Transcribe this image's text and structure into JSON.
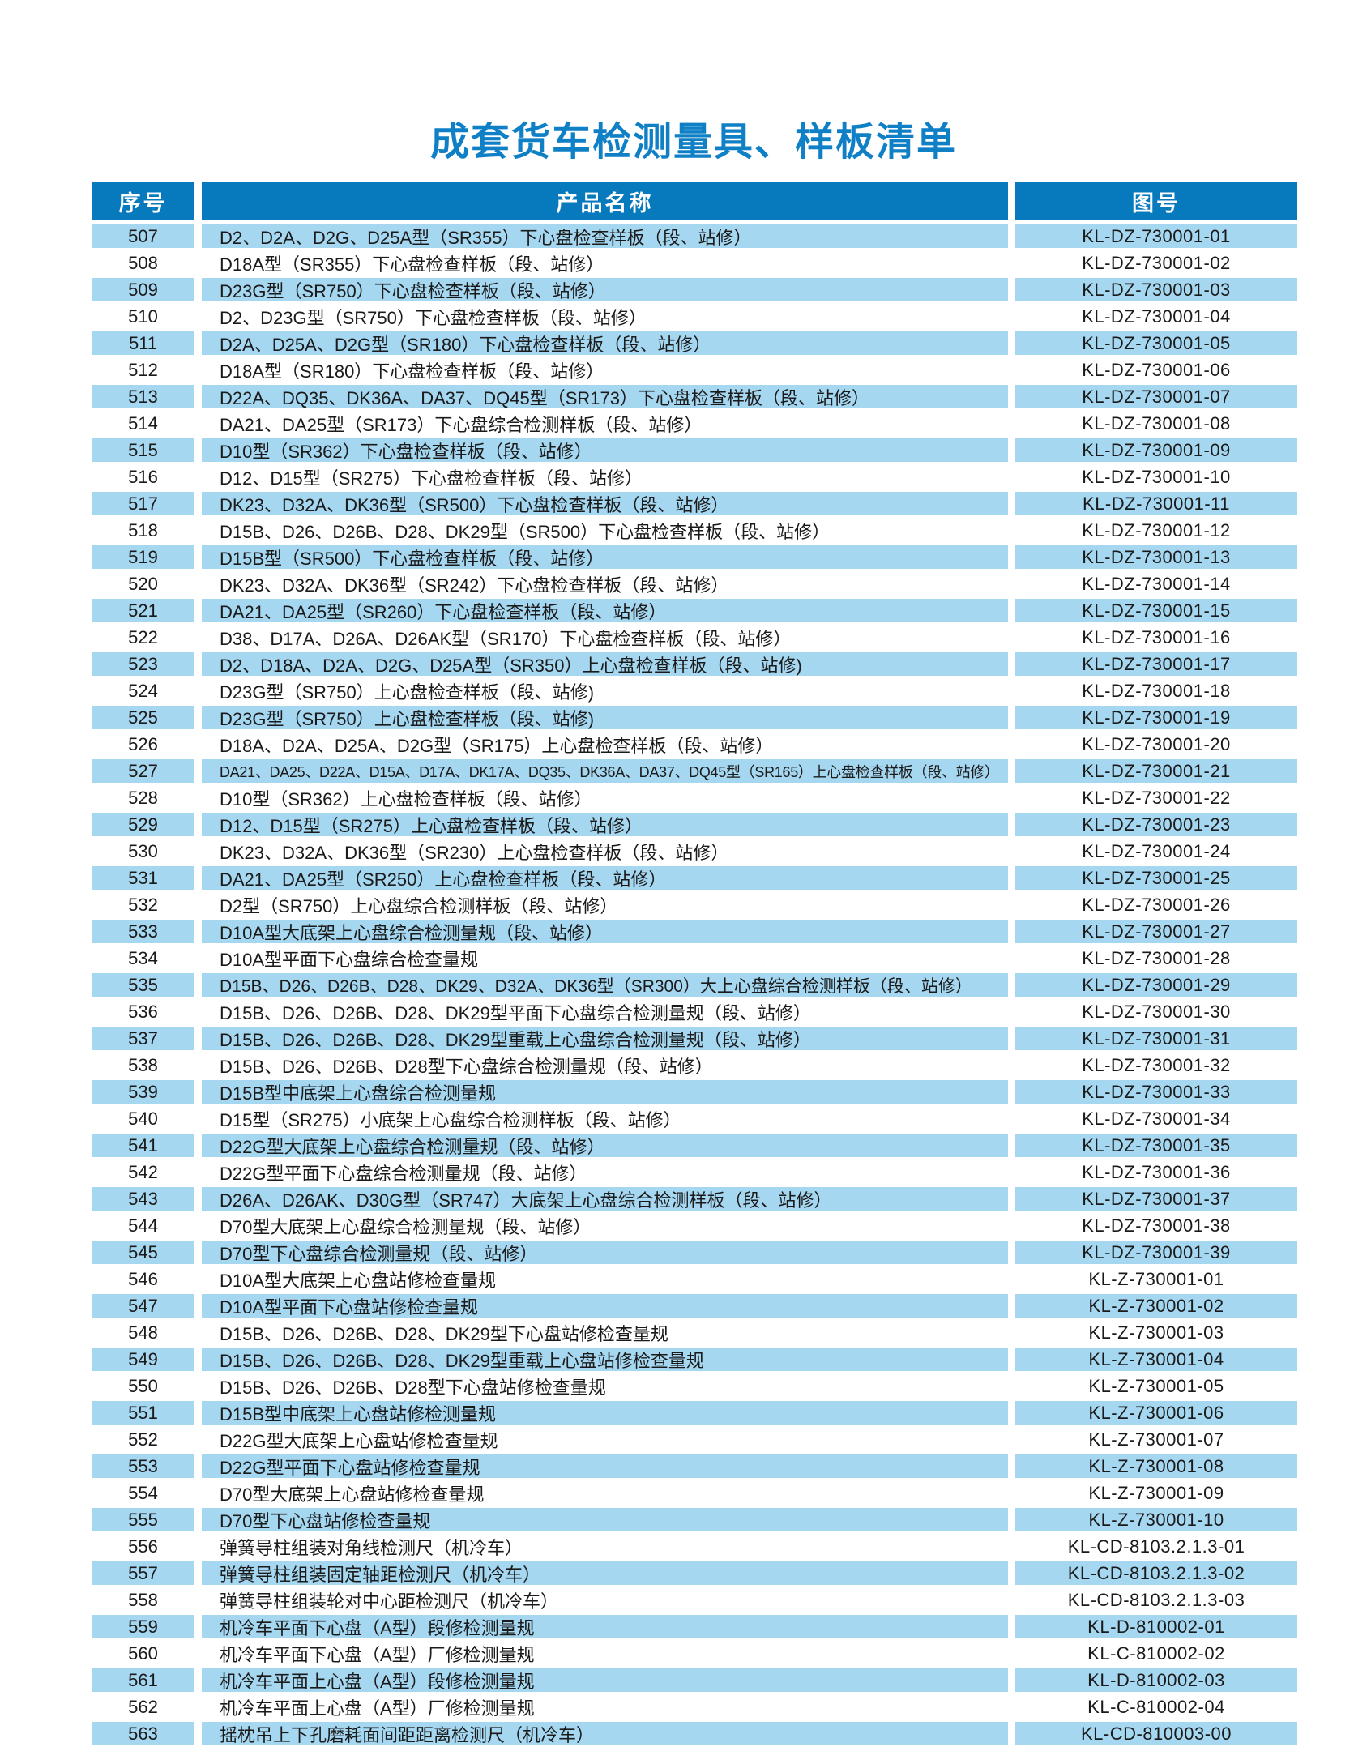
{
  "page": {
    "title": "成套货车检测量具、样板清单"
  },
  "colors": {
    "title": "#1080c6",
    "header_bg": "#0779bd",
    "alt_row_bg": "#a6d7f1",
    "text": "#1a1a1a"
  },
  "table": {
    "columns": [
      "序号",
      "产品名称",
      "图号"
    ],
    "rows": [
      {
        "no": "507",
        "name": "D2、D2A、D2G、D25A型（SR355）下心盘检查样板（段、站修）",
        "code": "KL-DZ-730001-01"
      },
      {
        "no": "508",
        "name": "D18A型（SR355）下心盘检查样板（段、站修）",
        "code": "KL-DZ-730001-02"
      },
      {
        "no": "509",
        "name": "D23G型（SR750）下心盘检查样板（段、站修）",
        "code": "KL-DZ-730001-03"
      },
      {
        "no": "510",
        "name": "D2、D23G型（SR750）下心盘检查样板（段、站修）",
        "code": "KL-DZ-730001-04"
      },
      {
        "no": "511",
        "name": "D2A、D25A、D2G型（SR180）下心盘检查样板（段、站修）",
        "code": "KL-DZ-730001-05"
      },
      {
        "no": "512",
        "name": "D18A型（SR180）下心盘检查样板（段、站修）",
        "code": "KL-DZ-730001-06"
      },
      {
        "no": "513",
        "name": "D22A、DQ35、DK36A、DA37、DQ45型（SR173）下心盘检查样板（段、站修）",
        "code": "KL-DZ-730001-07"
      },
      {
        "no": "514",
        "name": "DA21、DA25型（SR173）下心盘综合检测样板（段、站修）",
        "code": "KL-DZ-730001-08"
      },
      {
        "no": "515",
        "name": "D10型（SR362）下心盘检查样板（段、站修）",
        "code": "KL-DZ-730001-09"
      },
      {
        "no": "516",
        "name": "D12、D15型（SR275）下心盘检查样板（段、站修）",
        "code": "KL-DZ-730001-10"
      },
      {
        "no": "517",
        "name": "DK23、D32A、DK36型（SR500）下心盘检查样板（段、站修）",
        "code": "KL-DZ-730001-11"
      },
      {
        "no": "518",
        "name": "D15B、D26、D26B、D28、DK29型（SR500）下心盘检查样板（段、站修）",
        "code": "KL-DZ-730001-12"
      },
      {
        "no": "519",
        "name": "D15B型（SR500）下心盘检查样板（段、站修）",
        "code": "KL-DZ-730001-13"
      },
      {
        "no": "520",
        "name": "DK23、D32A、DK36型（SR242）下心盘检查样板（段、站修）",
        "code": "KL-DZ-730001-14"
      },
      {
        "no": "521",
        "name": "DA21、DA25型（SR260）下心盘检查样板（段、站修）",
        "code": "KL-DZ-730001-15"
      },
      {
        "no": "522",
        "name": "D38、D17A、D26A、D26AK型（SR170）下心盘检查样板（段、站修）",
        "code": "KL-DZ-730001-16"
      },
      {
        "no": "523",
        "name": "D2、D18A、D2A、D2G、D25A型（SR350）上心盘检查样板（段、站修)",
        "code": "KL-DZ-730001-17"
      },
      {
        "no": "524",
        "name": "D23G型（SR750）上心盘检查样板（段、站修)",
        "code": "KL-DZ-730001-18"
      },
      {
        "no": "525",
        "name": "D23G型（SR750）上心盘检查样板（段、站修)",
        "code": "KL-DZ-730001-19"
      },
      {
        "no": "526",
        "name": "D18A、D2A、D25A、D2G型（SR175）上心盘检查样板（段、站修）",
        "code": "KL-DZ-730001-20"
      },
      {
        "no": "527",
        "name": "DA21、DA25、D22A、D15A、D17A、DK17A、DQ35、DK36A、DA37、DQ45型（SR165）上心盘检查样板（段、站修）",
        "code": "KL-DZ-730001-21",
        "condensed": true
      },
      {
        "no": "528",
        "name": "D10型（SR362）上心盘检查样板（段、站修）",
        "code": "KL-DZ-730001-22"
      },
      {
        "no": "529",
        "name": "D12、D15型（SR275）上心盘检查样板（段、站修）",
        "code": "KL-DZ-730001-23"
      },
      {
        "no": "530",
        "name": "DK23、D32A、DK36型（SR230）上心盘检查样板（段、站修）",
        "code": "KL-DZ-730001-24"
      },
      {
        "no": "531",
        "name": "DA21、DA25型（SR250）上心盘检查样板（段、站修）",
        "code": "KL-DZ-730001-25"
      },
      {
        "no": "532",
        "name": "D2型（SR750）上心盘综合检测样板（段、站修）",
        "code": "KL-DZ-730001-26"
      },
      {
        "no": "533",
        "name": "D10A型大底架上心盘综合检测量规（段、站修）",
        "code": "KL-DZ-730001-27"
      },
      {
        "no": "534",
        "name": "D10A型平面下心盘综合检查量规",
        "code": "KL-DZ-730001-28"
      },
      {
        "no": "535",
        "name": "D15B、D26、D26B、D28、DK29、D32A、DK36型（SR300）大上心盘综合检测样板（段、站修）",
        "code": "KL-DZ-730001-29",
        "tight": true
      },
      {
        "no": "536",
        "name": "D15B、D26、D26B、D28、DK29型平面下心盘综合检测量规（段、站修）",
        "code": "KL-DZ-730001-30"
      },
      {
        "no": "537",
        "name": "D15B、D26、D26B、D28、DK29型重载上心盘综合检测量规（段、站修）",
        "code": "KL-DZ-730001-31"
      },
      {
        "no": "538",
        "name": "D15B、D26、D26B、D28型下心盘综合检测量规（段、站修）",
        "code": "KL-DZ-730001-32"
      },
      {
        "no": "539",
        "name": "D15B型中底架上心盘综合检测量规",
        "code": "KL-DZ-730001-33"
      },
      {
        "no": "540",
        "name": "D15型（SR275）小底架上心盘综合检测样板（段、站修）",
        "code": "KL-DZ-730001-34"
      },
      {
        "no": "541",
        "name": "D22G型大底架上心盘综合检测量规（段、站修）",
        "code": "KL-DZ-730001-35"
      },
      {
        "no": "542",
        "name": "D22G型平面下心盘综合检测量规（段、站修）",
        "code": "KL-DZ-730001-36"
      },
      {
        "no": "543",
        "name": "D26A、D26AK、D30G型（SR747）大底架上心盘综合检测样板（段、站修）",
        "code": "KL-DZ-730001-37"
      },
      {
        "no": "544",
        "name": "D70型大底架上心盘综合检测量规（段、站修）",
        "code": "KL-DZ-730001-38"
      },
      {
        "no": "545",
        "name": "D70型下心盘综合检测量规（段、站修）",
        "code": "KL-DZ-730001-39"
      },
      {
        "no": "546",
        "name": "D10A型大底架上心盘站修检查量规",
        "code": "KL-Z-730001-01"
      },
      {
        "no": "547",
        "name": "D10A型平面下心盘站修检查量规",
        "code": "KL-Z-730001-02"
      },
      {
        "no": "548",
        "name": "D15B、D26、D26B、D28、DK29型下心盘站修检查量规",
        "code": "KL-Z-730001-03"
      },
      {
        "no": "549",
        "name": "D15B、D26、D26B、D28、DK29型重载上心盘站修检查量规",
        "code": "KL-Z-730001-04"
      },
      {
        "no": "550",
        "name": "D15B、D26、D26B、D28型下心盘站修检查量规",
        "code": "KL-Z-730001-05"
      },
      {
        "no": "551",
        "name": "D15B型中底架上心盘站修检测量规",
        "code": "KL-Z-730001-06"
      },
      {
        "no": "552",
        "name": "D22G型大底架上心盘站修检查量规",
        "code": "KL-Z-730001-07"
      },
      {
        "no": "553",
        "name": "D22G型平面下心盘站修检查量规",
        "code": "KL-Z-730001-08"
      },
      {
        "no": "554",
        "name": "D70型大底架上心盘站修检查量规",
        "code": "KL-Z-730001-09"
      },
      {
        "no": "555",
        "name": "D70型下心盘站修检查量规",
        "code": "KL-Z-730001-10"
      },
      {
        "no": "556",
        "name": "弹簧导柱组装对角线检测尺（机冷车）",
        "code": "KL-CD-8103.2.1.3-01"
      },
      {
        "no": "557",
        "name": "弹簧导柱组装固定轴距检测尺（机冷车）",
        "code": "KL-CD-8103.2.1.3-02"
      },
      {
        "no": "558",
        "name": "弹簧导柱组装轮对中心距检测尺（机冷车）",
        "code": "KL-CD-8103.2.1.3-03"
      },
      {
        "no": "559",
        "name": "机冷车平面下心盘（A型）段修检测量规",
        "code": "KL-D-810002-01"
      },
      {
        "no": "560",
        "name": "机冷车平面下心盘（A型）厂修检测量规",
        "code": "KL-C-810002-02"
      },
      {
        "no": "561",
        "name": "机冷车平面上心盘（A型）段修检测量规",
        "code": "KL-D-810002-03"
      },
      {
        "no": "562",
        "name": "机冷车平面上心盘（A型）厂修检测量规",
        "code": "KL-C-810002-04"
      },
      {
        "no": "563",
        "name": "摇枕吊上下孔磨耗面间距距离检测尺（机冷车）",
        "code": "KL-CD-810003-00"
      }
    ]
  }
}
